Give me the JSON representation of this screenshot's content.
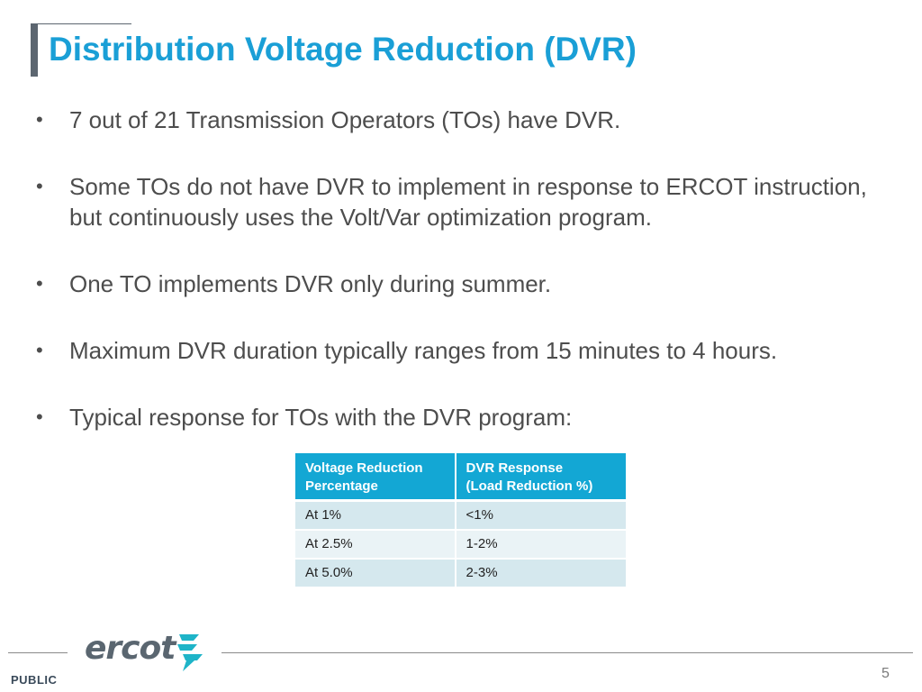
{
  "slide": {
    "title": "Distribution Voltage Reduction (DVR)",
    "bullets": [
      {
        "marker": "•",
        "text": "7 out of 21 Transmission Operators (TOs) have DVR."
      },
      {
        "marker": "•",
        "text": "Some TOs do not have DVR to implement in response to ERCOT instruction, but continuously uses the Volt/Var optimization program."
      },
      {
        "marker": "•",
        "text": "One TO implements DVR only during summer."
      },
      {
        "marker": "•",
        "text": "Maximum DVR duration typically ranges from 15 minutes to 4 hours."
      },
      {
        "marker": "•",
        "text": "Typical response for TOs with the DVR program:"
      }
    ]
  },
  "table": {
    "header": {
      "col1_line1": "Voltage Reduction",
      "col1_line2": "Percentage",
      "col2_line1": "DVR Response",
      "col2_line2": "(Load Reduction %)"
    },
    "rows": [
      {
        "reduction": "At 1%",
        "response": "<1%"
      },
      {
        "reduction": "At 2.5%",
        "response": "1-2%"
      },
      {
        "reduction": "At 5.0%",
        "response": "2-3%"
      }
    ]
  },
  "footer": {
    "logo_text": "ercot",
    "classification": "PUBLIC",
    "page_number": "5"
  },
  "colors": {
    "title": "#1a9fd6",
    "table_header": "#13a7d4",
    "row_odd": "#d5e8ee",
    "row_even": "#eaf3f6",
    "logo_mark": "#1eb4c8",
    "logo_text": "#5a6670"
  },
  "icons": {
    "logo": "ercot-logo-lightning-mark"
  }
}
